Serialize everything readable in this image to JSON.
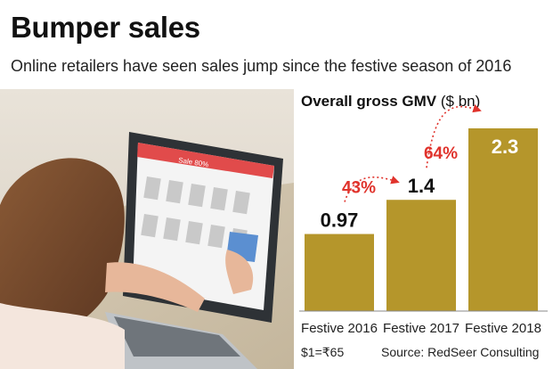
{
  "header": {
    "title": "Bumper sales",
    "subtitle": "Online retailers have seen sales jump since the festive season of 2016"
  },
  "photo": {
    "screen_banner": "Sale 80%"
  },
  "chart_data": {
    "type": "bar",
    "title": "Overall gross GMV",
    "unit": "($ bn)",
    "categories": [
      "Festive 2016",
      "Festive 2017",
      "Festive 2018"
    ],
    "values": [
      0.97,
      1.4,
      2.3
    ],
    "value_labels": [
      "0.97",
      "1.4",
      "2.3"
    ],
    "growth_labels": [
      "43%",
      "64%"
    ],
    "ylim": [
      0,
      2.3
    ],
    "grid": false,
    "colors": {
      "bar": "#b5962b",
      "growth_text": "#e0332c",
      "arrow": "#e0332c"
    }
  },
  "footer": {
    "note": "$1=₹65",
    "source": "Source: RedSeer Consulting"
  }
}
